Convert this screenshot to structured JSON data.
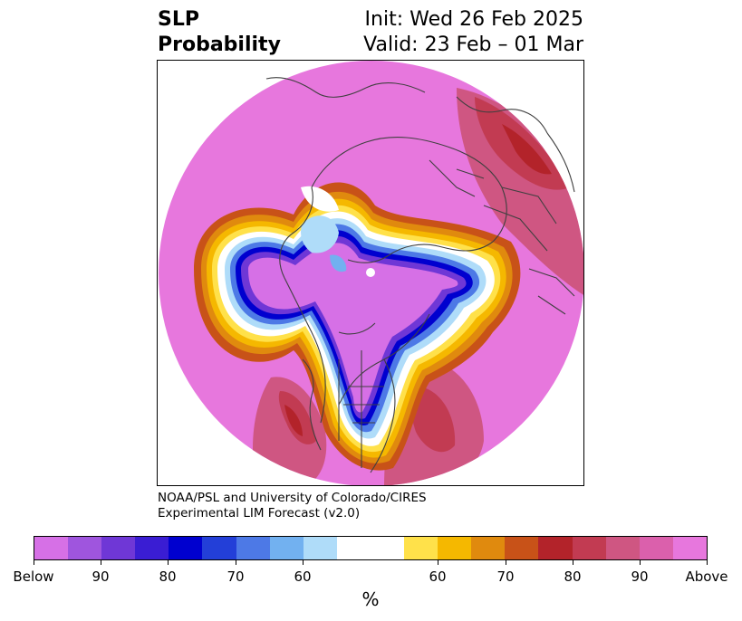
{
  "title": {
    "left_line1": "SLP",
    "left_line2": "Probability",
    "right_line1": "Init: Wed 26 Feb 2025",
    "right_line2": "Valid: 23 Feb – 01 Mar"
  },
  "credit": {
    "line1": "NOAA/PSL and University of Colorado/CIRES",
    "line2": "Experimental LIM Forecast (v2.0)"
  },
  "colorbar": {
    "colors": [
      "#d670e6",
      "#9f55de",
      "#6f37d6",
      "#3a1dd3",
      "#0000cf",
      "#233fd8",
      "#4d79e6",
      "#72b1f0",
      "#afdcf9",
      "#ffffff",
      "#ffe14a",
      "#f5b800",
      "#e08a0e",
      "#c85218",
      "#b3232a",
      "#c23b52",
      "#cf5682",
      "#db60ac",
      "#e777dd"
    ],
    "tick_labels": [
      "Below",
      "90",
      "80",
      "70",
      "60",
      "60",
      "70",
      "80",
      "90",
      "Above"
    ],
    "unit": "%"
  }
}
